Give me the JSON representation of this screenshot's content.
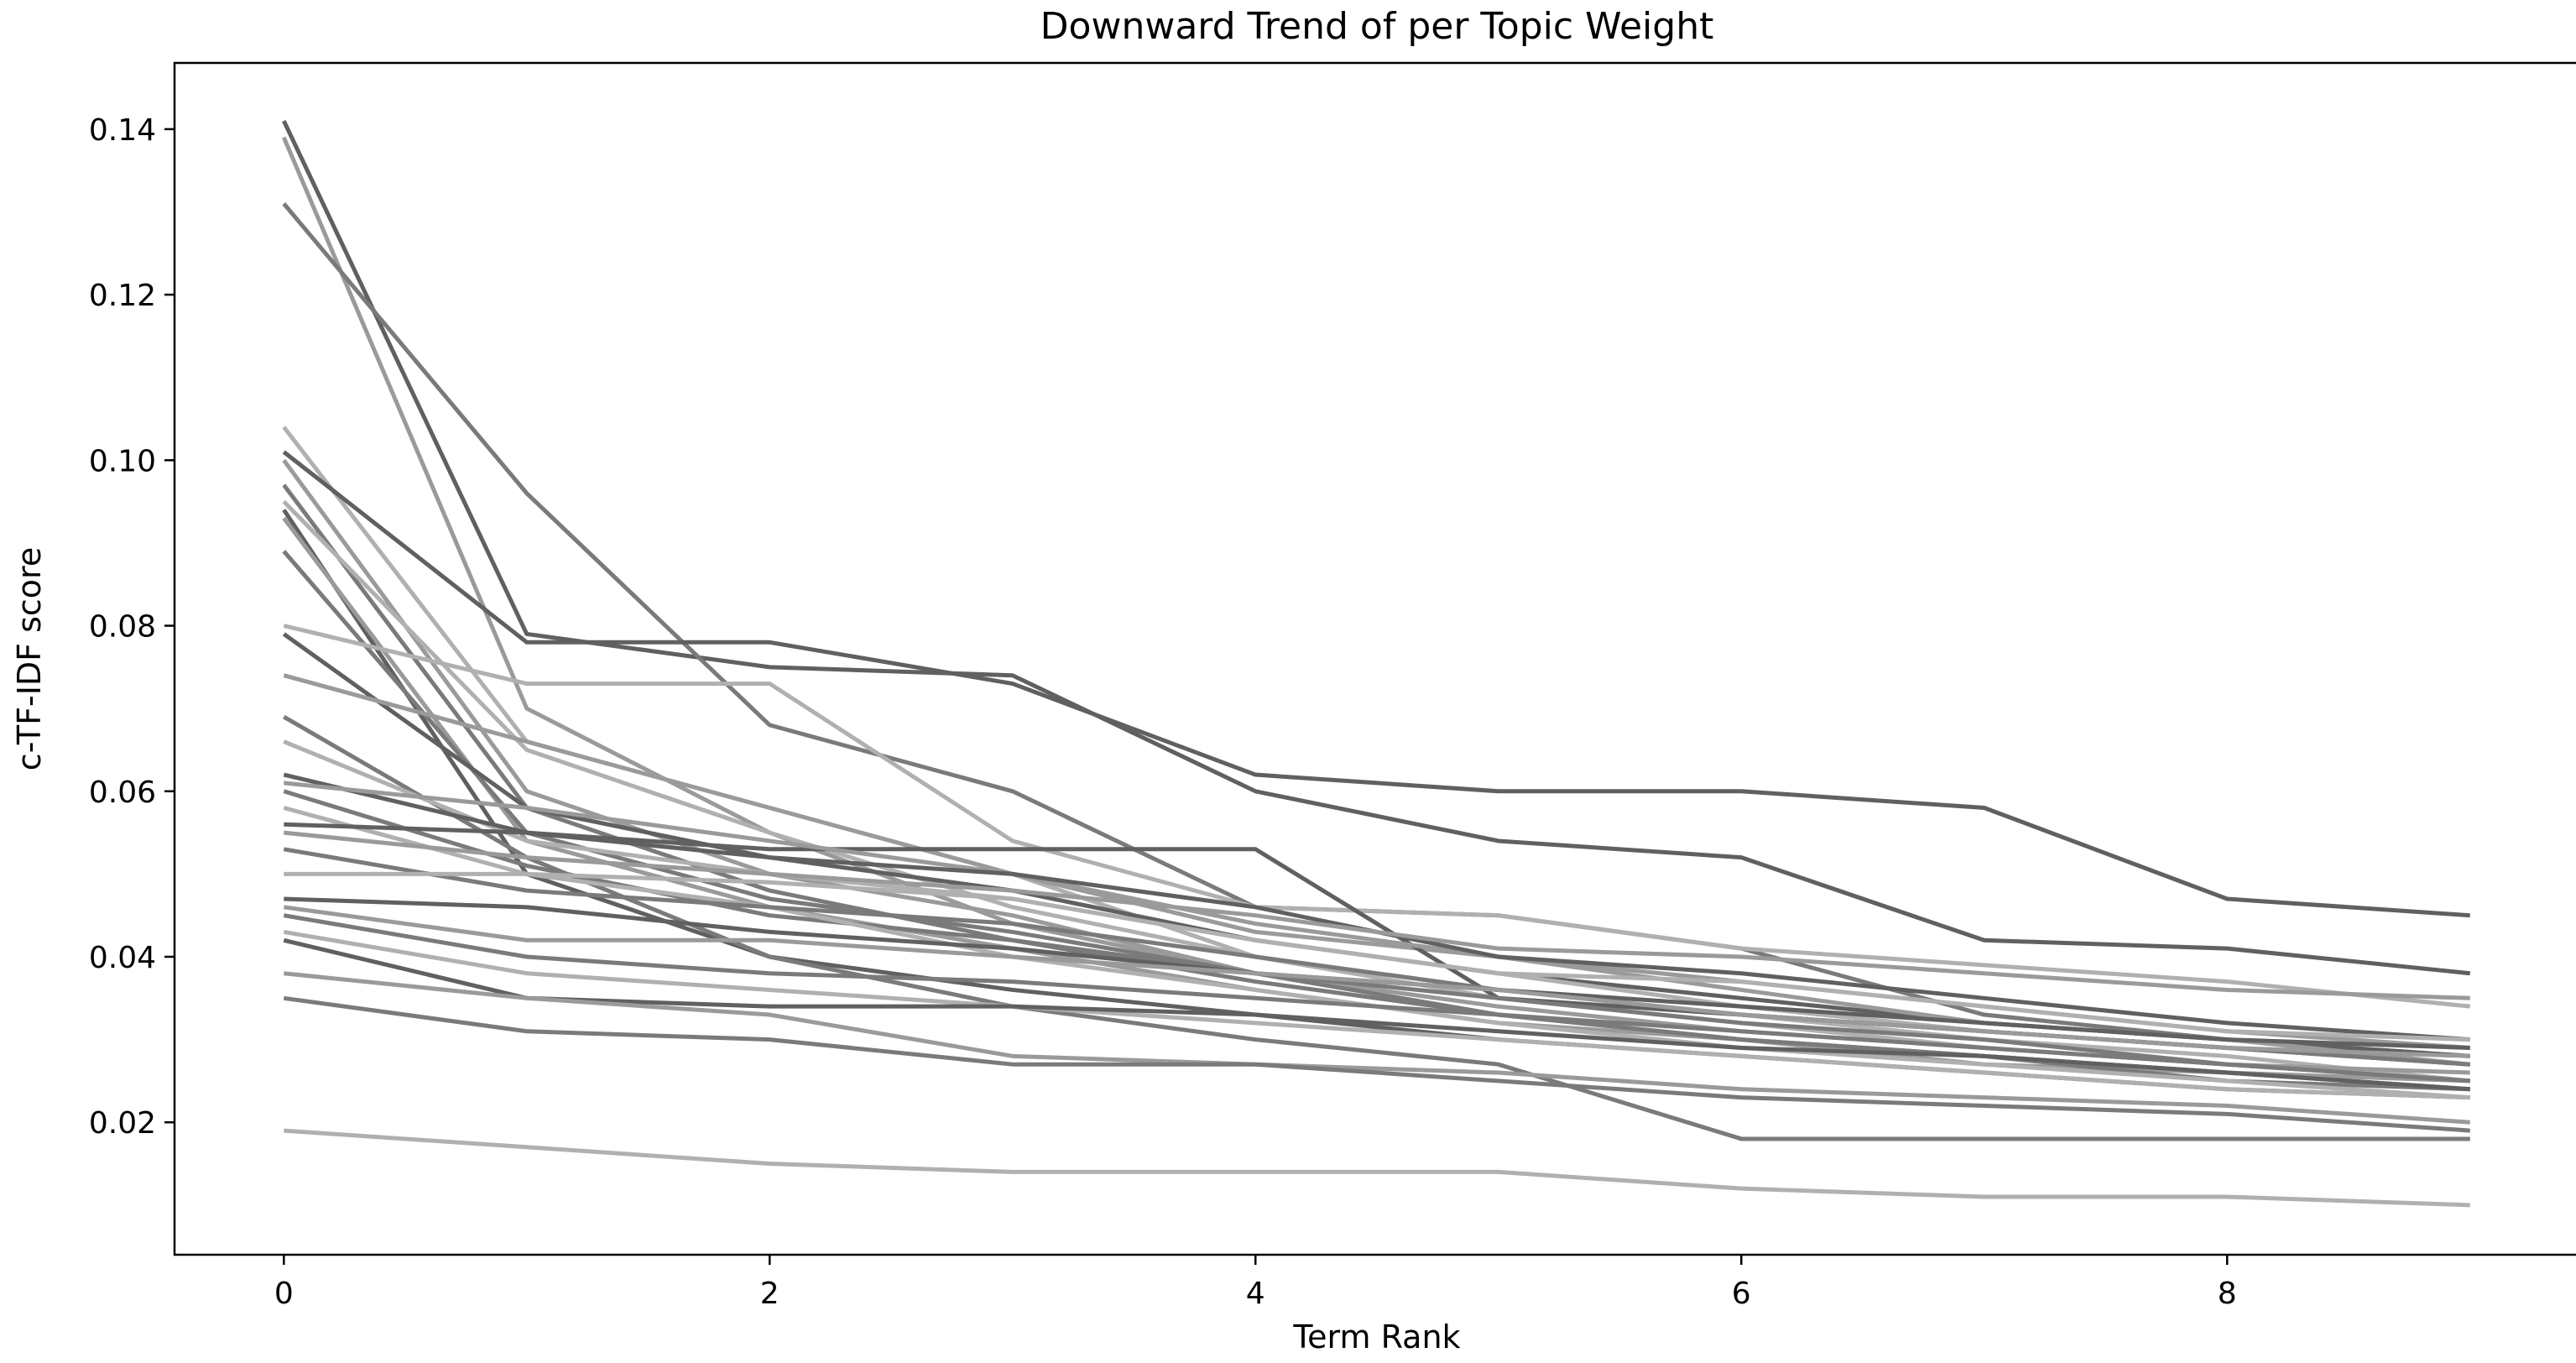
{
  "chart_data": {
    "type": "line",
    "title": "Downward Trend of per Topic Weight",
    "xlabel": "Term Rank",
    "ylabel": "c-TF-IDF score",
    "xlim": [
      -0.45,
      9.45
    ],
    "ylim": [
      0.004,
      0.148
    ],
    "xticks": [
      0,
      2,
      4,
      6,
      8
    ],
    "xtick_labels": [
      "0",
      "2",
      "4",
      "6",
      "8"
    ],
    "yticks": [
      0.02,
      0.04,
      0.06,
      0.08,
      0.1,
      0.12,
      0.14
    ],
    "ytick_labels": [
      "0.02",
      "0.04",
      "0.06",
      "0.08",
      "0.10",
      "0.12",
      "0.14"
    ],
    "grid": false,
    "legend": "none",
    "x": [
      0,
      1,
      2,
      3,
      4,
      5,
      6,
      7,
      8,
      9
    ],
    "colors": [
      "#606060",
      "#9a9a9a",
      "#7a7a7a",
      "#b0b0b0"
    ],
    "series": [
      {
        "values": [
          0.141,
          0.079,
          0.075,
          0.074,
          0.06,
          0.054,
          0.052,
          0.042,
          0.041,
          0.038
        ]
      },
      {
        "values": [
          0.139,
          0.07,
          0.055,
          0.044,
          0.038,
          0.033,
          0.03,
          0.027,
          0.026,
          0.025
        ]
      },
      {
        "values": [
          0.131,
          0.096,
          0.068,
          0.06,
          0.046,
          0.045,
          0.041,
          0.033,
          0.03,
          0.028
        ]
      },
      {
        "values": [
          0.104,
          0.066,
          0.058,
          0.05,
          0.04,
          0.036,
          0.033,
          0.03,
          0.028,
          0.025
        ]
      },
      {
        "values": [
          0.101,
          0.078,
          0.078,
          0.073,
          0.062,
          0.06,
          0.06,
          0.058,
          0.047,
          0.045
        ]
      },
      {
        "values": [
          0.1,
          0.06,
          0.05,
          0.045,
          0.038,
          0.034,
          0.031,
          0.029,
          0.027,
          0.026
        ]
      },
      {
        "values": [
          0.097,
          0.058,
          0.048,
          0.042,
          0.037,
          0.033,
          0.03,
          0.028,
          0.025,
          0.024
        ]
      },
      {
        "values": [
          0.095,
          0.065,
          0.055,
          0.046,
          0.04,
          0.035,
          0.032,
          0.029,
          0.027,
          0.025
        ]
      },
      {
        "values": [
          0.094,
          0.05,
          0.04,
          0.036,
          0.033,
          0.03,
          0.028,
          0.026,
          0.024,
          0.023
        ]
      },
      {
        "values": [
          0.093,
          0.054,
          0.046,
          0.041,
          0.036,
          0.032,
          0.03,
          0.028,
          0.026,
          0.024
        ]
      },
      {
        "values": [
          0.089,
          0.055,
          0.047,
          0.043,
          0.038,
          0.033,
          0.03,
          0.028,
          0.026,
          0.024
        ]
      },
      {
        "values": [
          0.08,
          0.073,
          0.073,
          0.054,
          0.046,
          0.045,
          0.041,
          0.039,
          0.037,
          0.034
        ]
      },
      {
        "values": [
          0.079,
          0.058,
          0.052,
          0.048,
          0.042,
          0.038,
          0.035,
          0.032,
          0.03,
          0.028
        ]
      },
      {
        "values": [
          0.074,
          0.066,
          0.058,
          0.05,
          0.043,
          0.04,
          0.037,
          0.034,
          0.031,
          0.029
        ]
      },
      {
        "values": [
          0.069,
          0.052,
          0.04,
          0.034,
          0.03,
          0.027,
          0.018,
          0.018,
          0.018,
          0.018
        ]
      },
      {
        "values": [
          0.066,
          0.054,
          0.05,
          0.047,
          0.042,
          0.038,
          0.034,
          0.031,
          0.029,
          0.027
        ]
      },
      {
        "values": [
          0.062,
          0.055,
          0.053,
          0.053,
          0.053,
          0.035,
          0.033,
          0.031,
          0.029,
          0.027
        ]
      },
      {
        "values": [
          0.061,
          0.058,
          0.054,
          0.05,
          0.044,
          0.04,
          0.036,
          0.032,
          0.03,
          0.027
        ]
      },
      {
        "values": [
          0.06,
          0.051,
          0.045,
          0.042,
          0.038,
          0.035,
          0.032,
          0.03,
          0.027,
          0.025
        ]
      },
      {
        "values": [
          0.058,
          0.05,
          0.046,
          0.04,
          0.036,
          0.032,
          0.029,
          0.027,
          0.025,
          0.023
        ]
      },
      {
        "values": [
          0.056,
          0.055,
          0.052,
          0.05,
          0.046,
          0.04,
          0.038,
          0.035,
          0.032,
          0.03
        ]
      },
      {
        "values": [
          0.055,
          0.052,
          0.05,
          0.048,
          0.045,
          0.041,
          0.04,
          0.038,
          0.036,
          0.035
        ]
      },
      {
        "values": [
          0.053,
          0.048,
          0.046,
          0.044,
          0.04,
          0.036,
          0.033,
          0.031,
          0.029,
          0.027
        ]
      },
      {
        "values": [
          0.05,
          0.05,
          0.049,
          0.047,
          0.042,
          0.038,
          0.037,
          0.034,
          0.031,
          0.03
        ]
      },
      {
        "values": [
          0.047,
          0.046,
          0.043,
          0.041,
          0.038,
          0.036,
          0.034,
          0.032,
          0.03,
          0.029
        ]
      },
      {
        "values": [
          0.046,
          0.042,
          0.042,
          0.04,
          0.038,
          0.036,
          0.033,
          0.031,
          0.029,
          0.028
        ]
      },
      {
        "values": [
          0.045,
          0.04,
          0.038,
          0.037,
          0.035,
          0.033,
          0.031,
          0.029,
          0.027,
          0.025
        ]
      },
      {
        "values": [
          0.043,
          0.038,
          0.036,
          0.034,
          0.032,
          0.03,
          0.028,
          0.026,
          0.024,
          0.023
        ]
      },
      {
        "values": [
          0.042,
          0.035,
          0.034,
          0.034,
          0.033,
          0.031,
          0.029,
          0.028,
          0.026,
          0.024
        ]
      },
      {
        "values": [
          0.038,
          0.035,
          0.033,
          0.028,
          0.027,
          0.026,
          0.024,
          0.023,
          0.022,
          0.02
        ]
      },
      {
        "values": [
          0.035,
          0.031,
          0.03,
          0.027,
          0.027,
          0.025,
          0.023,
          0.022,
          0.021,
          0.019
        ]
      },
      {
        "values": [
          0.019,
          0.017,
          0.015,
          0.014,
          0.014,
          0.014,
          0.012,
          0.011,
          0.011,
          0.01
        ]
      }
    ]
  }
}
